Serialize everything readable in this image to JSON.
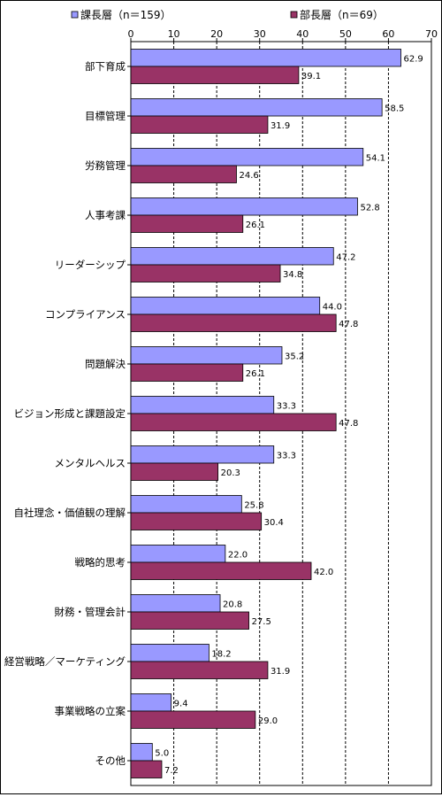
{
  "chart_data": {
    "type": "bar",
    "orientation": "horizontal",
    "categories": [
      "部下育成",
      "目標管理",
      "労務管理",
      "人事考課",
      "リーダーシップ",
      "コンプライアンス",
      "問題解決",
      "ビジョン形成と課題設定",
      "メンタルヘルス",
      "自社理念・価値観の理解",
      "戦略的思考",
      "財務・管理会計",
      "経営戦略／マーケティング",
      "事業戦略の立案",
      "その他"
    ],
    "series": [
      {
        "name": "課長層（n＝159）",
        "color": "#9999ff",
        "values": [
          62.9,
          58.5,
          54.1,
          52.8,
          47.2,
          44.0,
          35.2,
          33.3,
          33.3,
          25.8,
          22.0,
          20.8,
          18.2,
          9.4,
          5.0
        ]
      },
      {
        "name": "部長層（n＝69）",
        "color": "#993366",
        "values": [
          39.1,
          31.9,
          24.6,
          26.1,
          34.8,
          47.8,
          26.1,
          47.8,
          20.3,
          30.4,
          42.0,
          27.5,
          31.9,
          29.0,
          7.2
        ]
      }
    ],
    "value_labels": [
      [
        "62.9",
        "58.5",
        "54.1",
        "52.8",
        "47.2",
        "44.0",
        "35.2",
        "33.3",
        "33.3",
        "25.8",
        "22.0",
        "20.8",
        "18.2",
        "9.4",
        "5.0"
      ],
      [
        "39.1",
        "31.9",
        "24.6",
        "26.1",
        "34.8",
        "47.8",
        "26.1",
        "47.8",
        "20.3",
        "30.4",
        "42.0",
        "27.5",
        "31.9",
        "29.0",
        "7.2"
      ]
    ],
    "xlim": [
      0,
      70
    ],
    "xticks": [
      0,
      10,
      20,
      30,
      40,
      50,
      60,
      70
    ],
    "xtick_labels": [
      "0",
      "10",
      "20",
      "30",
      "40",
      "50",
      "60",
      "70"
    ],
    "grid": "vertical-dashed",
    "legend_position": "top",
    "axis_position": "top"
  }
}
